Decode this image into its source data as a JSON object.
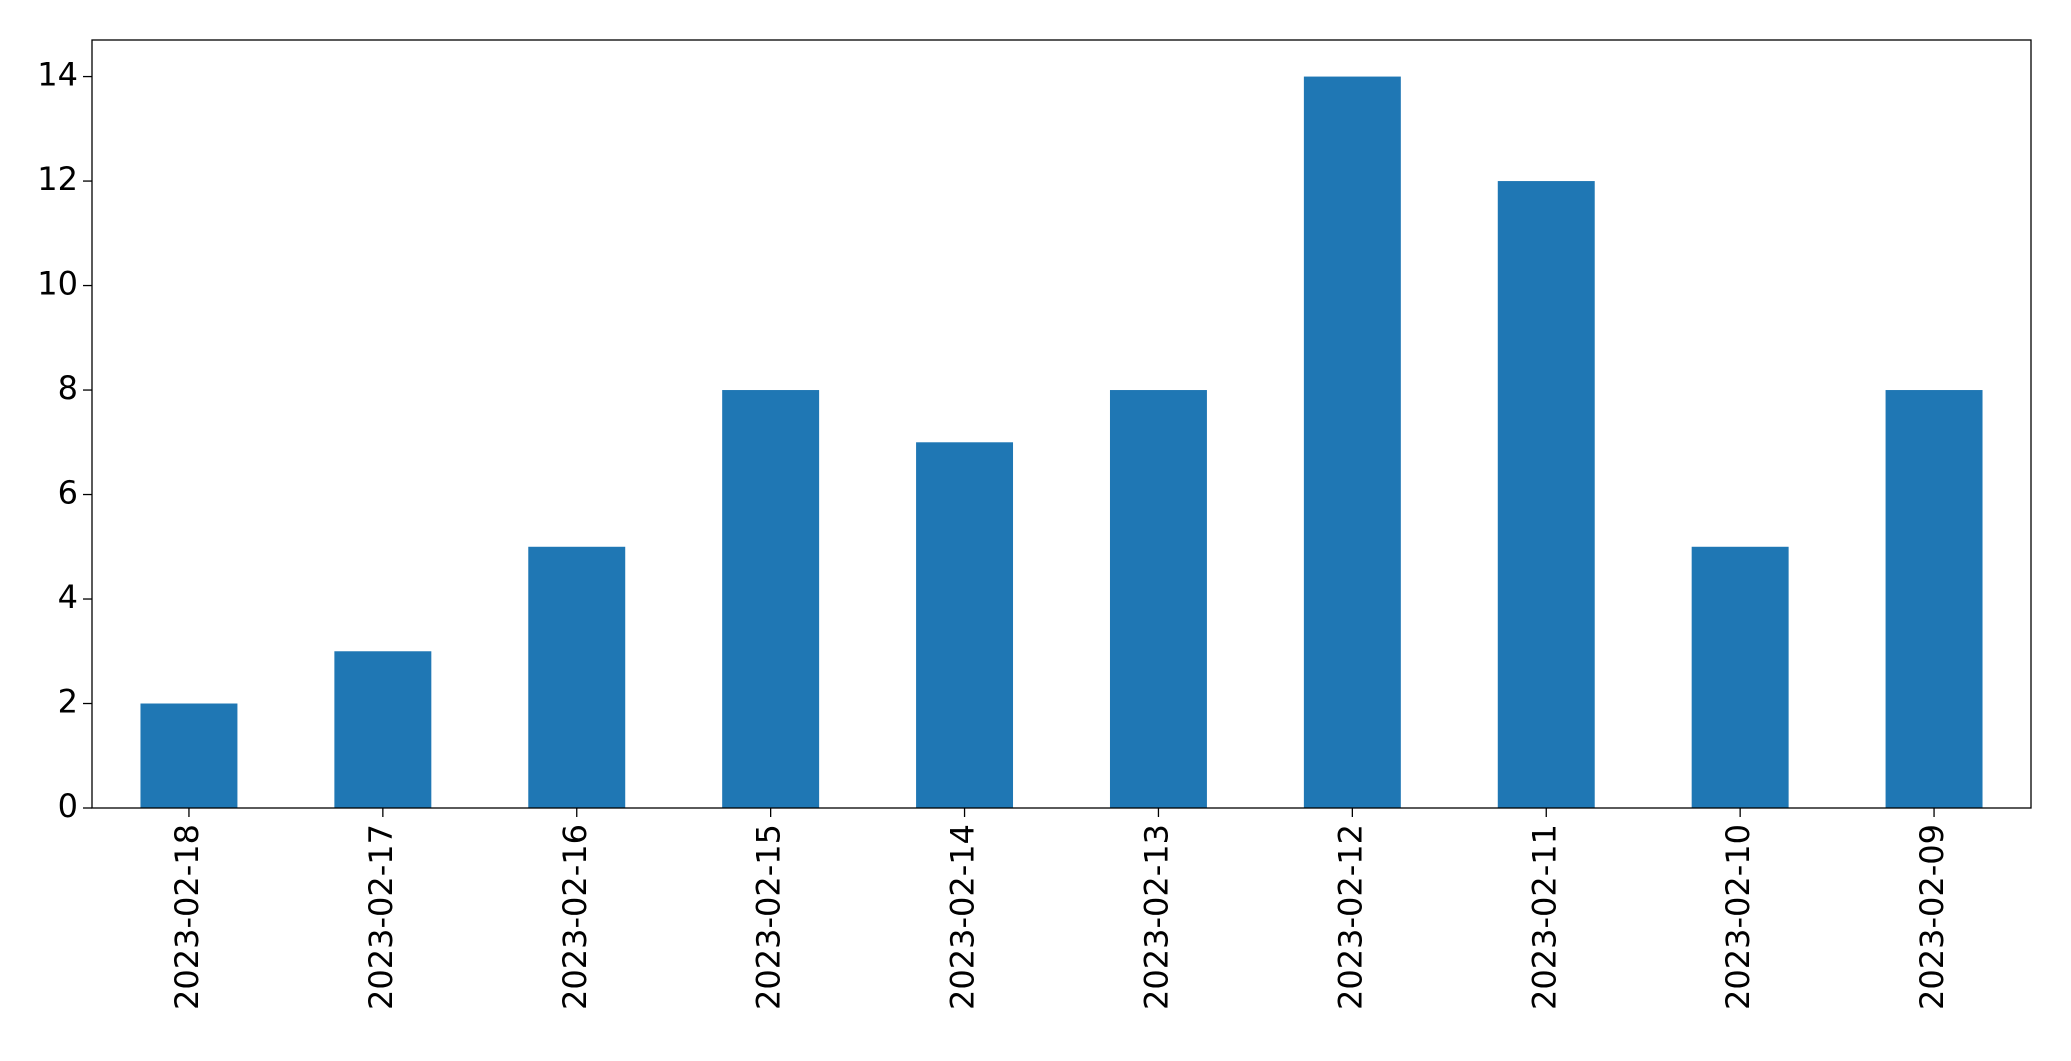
{
  "chart_data": {
    "type": "bar",
    "categories": [
      "2023-02-18",
      "2023-02-17",
      "2023-02-16",
      "2023-02-15",
      "2023-02-14",
      "2023-02-13",
      "2023-02-12",
      "2023-02-11",
      "2023-02-10",
      "2023-02-09"
    ],
    "values": [
      2,
      3,
      5,
      8,
      7,
      8,
      14,
      12,
      5,
      8
    ],
    "color": "#1f77b4",
    "ylim": [
      0,
      14.7
    ],
    "yticks": [
      0,
      2,
      4,
      6,
      8,
      10,
      12,
      14
    ],
    "grid": false
  }
}
